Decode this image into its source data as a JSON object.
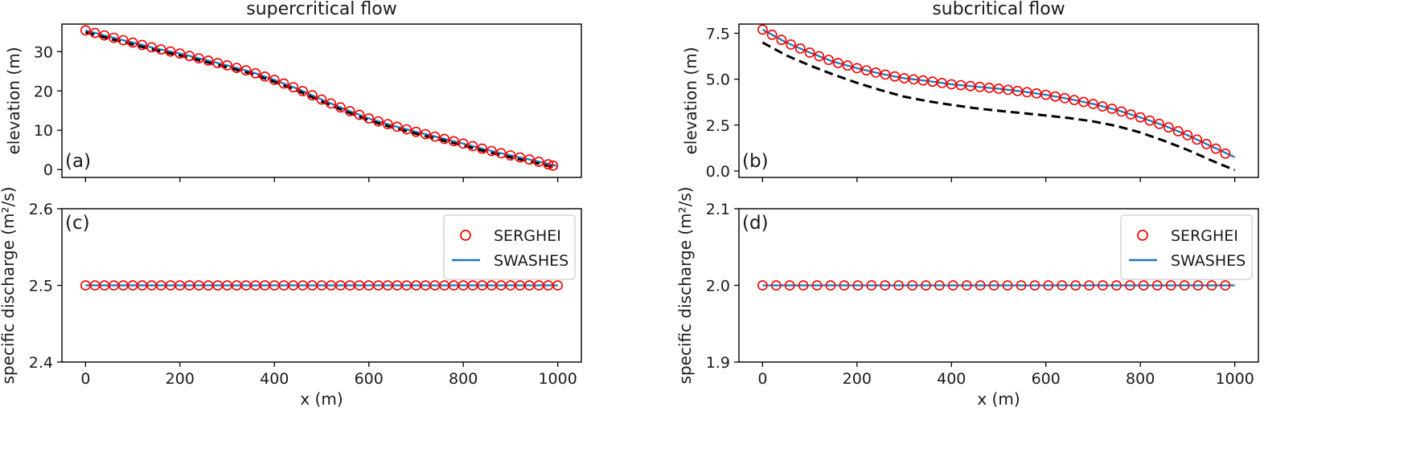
{
  "figure": {
    "xlabel": "x (m)",
    "ylabel_top": "elevation (m)",
    "ylabel_bottom": "specific discharge (m²/s)"
  },
  "chart_data": [
    {
      "id": "a",
      "panel_label": "(a)",
      "title": "supercritical flow",
      "type": "line",
      "xlim": [
        -50,
        1050
      ],
      "ylim": [
        -2,
        37
      ],
      "xticks": [
        0,
        200,
        400,
        600,
        800,
        1000
      ],
      "xtick_labels": [
        "",
        "",
        "",
        "",
        "",
        ""
      ],
      "yticks": [
        0,
        10,
        20,
        30
      ],
      "ytick_labels": [
        "0",
        "10",
        "20",
        "30"
      ],
      "legend": false,
      "series": [
        {
          "role": "serghei",
          "style": "circle",
          "color": "#ff0000",
          "x": [
            0,
            50,
            100,
            150,
            200,
            250,
            300,
            350,
            400,
            450,
            500,
            550,
            600,
            650,
            700,
            750,
            800,
            850,
            900,
            950,
            990
          ],
          "values": [
            35.4,
            33.8,
            32.3,
            30.8,
            29.5,
            28.0,
            26.5,
            24.9,
            22.8,
            20.5,
            17.8,
            15.3,
            13.0,
            11.2,
            9.6,
            8.1,
            6.6,
            5.0,
            3.6,
            2.3,
            1.0
          ]
        },
        {
          "role": "swashes",
          "style": "solid",
          "color": "#1f77b4",
          "x": [
            0,
            50,
            100,
            150,
            200,
            250,
            300,
            350,
            400,
            450,
            500,
            550,
            600,
            650,
            700,
            750,
            800,
            850,
            900,
            950,
            1000
          ],
          "values": [
            35.4,
            33.8,
            32.3,
            30.8,
            29.5,
            28.0,
            26.5,
            24.9,
            22.8,
            20.5,
            17.8,
            15.3,
            13.0,
            11.2,
            9.6,
            8.1,
            6.6,
            5.0,
            3.6,
            2.3,
            0.9
          ]
        },
        {
          "role": "bed",
          "style": "dashed",
          "color": "#000000",
          "x": [
            0,
            50,
            100,
            150,
            200,
            250,
            300,
            350,
            400,
            450,
            500,
            550,
            600,
            650,
            700,
            750,
            800,
            850,
            900,
            950,
            1000
          ],
          "values": [
            34.9,
            33.3,
            31.8,
            30.3,
            29.0,
            27.5,
            26.0,
            24.4,
            22.3,
            20.0,
            17.3,
            14.8,
            12.5,
            10.7,
            9.1,
            7.6,
            6.1,
            4.5,
            3.1,
            1.8,
            0.3
          ]
        }
      ]
    },
    {
      "id": "b",
      "panel_label": "(b)",
      "title": "subcritical flow",
      "type": "line",
      "xlim": [
        -50,
        1050
      ],
      "ylim": [
        -0.35,
        8.0
      ],
      "xticks": [
        0,
        200,
        400,
        600,
        800,
        1000
      ],
      "xtick_labels": [
        "",
        "",
        "",
        "",
        "",
        ""
      ],
      "yticks": [
        0.0,
        2.5,
        5.0,
        7.5
      ],
      "ytick_labels": [
        "0.0",
        "2.5",
        "5.0",
        "7.5"
      ],
      "legend": false,
      "series": [
        {
          "role": "serghei",
          "style": "circle",
          "color": "#ff0000",
          "x": [
            0,
            50,
            100,
            150,
            200,
            250,
            300,
            350,
            400,
            450,
            500,
            550,
            600,
            650,
            700,
            750,
            800,
            850,
            900,
            950,
            980
          ],
          "values": [
            7.7,
            7.0,
            6.45,
            5.95,
            5.6,
            5.3,
            5.05,
            4.9,
            4.72,
            4.6,
            4.48,
            4.33,
            4.15,
            3.92,
            3.65,
            3.32,
            2.92,
            2.48,
            1.95,
            1.35,
            0.95
          ]
        },
        {
          "role": "swashes",
          "style": "solid",
          "color": "#1f77b4",
          "x": [
            0,
            50,
            100,
            150,
            200,
            250,
            300,
            350,
            400,
            450,
            500,
            550,
            600,
            650,
            700,
            750,
            800,
            850,
            900,
            950,
            1000
          ],
          "values": [
            7.7,
            7.0,
            6.45,
            5.95,
            5.6,
            5.3,
            5.05,
            4.9,
            4.72,
            4.6,
            4.48,
            4.33,
            4.15,
            3.92,
            3.65,
            3.32,
            2.92,
            2.48,
            1.95,
            1.35,
            0.75
          ]
        },
        {
          "role": "bed",
          "style": "dashed",
          "color": "#000000",
          "x": [
            0,
            50,
            100,
            150,
            200,
            250,
            300,
            350,
            400,
            450,
            500,
            550,
            600,
            650,
            700,
            750,
            800,
            850,
            900,
            950,
            1000
          ],
          "values": [
            7.0,
            6.3,
            5.75,
            5.25,
            4.8,
            4.4,
            4.05,
            3.8,
            3.6,
            3.42,
            3.28,
            3.15,
            3.02,
            2.88,
            2.7,
            2.45,
            2.1,
            1.65,
            1.15,
            0.58,
            0.05
          ]
        }
      ]
    },
    {
      "id": "c",
      "panel_label": "(c)",
      "title": "",
      "type": "line",
      "xlabel": "x (m)",
      "xlim": [
        -50,
        1050
      ],
      "ylim": [
        2.4,
        2.6
      ],
      "xticks": [
        0,
        200,
        400,
        600,
        800,
        1000
      ],
      "xtick_labels": [
        "0",
        "200",
        "400",
        "600",
        "800",
        "1000"
      ],
      "yticks": [
        2.4,
        2.5,
        2.6
      ],
      "ytick_labels": [
        "2.4",
        "2.5",
        "2.6"
      ],
      "legend": "top-right",
      "marker_count": 51,
      "series": [
        {
          "role": "serghei",
          "name": "SERGHEI",
          "style": "circle",
          "color": "#ff0000",
          "x": [
            0,
            1000
          ],
          "values": [
            2.5,
            2.5
          ]
        },
        {
          "role": "swashes",
          "name": "SWASHES",
          "style": "solid",
          "color": "#1f77b4",
          "x": [
            0,
            1000
          ],
          "values": [
            2.5,
            2.5
          ]
        }
      ]
    },
    {
      "id": "d",
      "panel_label": "(d)",
      "title": "",
      "type": "line",
      "xlabel": "x (m)",
      "xlim": [
        -50,
        1050
      ],
      "ylim": [
        1.9,
        2.1
      ],
      "xticks": [
        0,
        200,
        400,
        600,
        800,
        1000
      ],
      "xtick_labels": [
        "0",
        "200",
        "400",
        "600",
        "800",
        "1000"
      ],
      "yticks": [
        1.9,
        2.0,
        2.1
      ],
      "ytick_labels": [
        "1.9",
        "2.0",
        "2.1"
      ],
      "legend": "top-right",
      "marker_count": 35,
      "series": [
        {
          "role": "serghei",
          "name": "SERGHEI",
          "style": "circle",
          "color": "#ff0000",
          "x": [
            0,
            980
          ],
          "values": [
            2.0,
            2.0
          ]
        },
        {
          "role": "swashes",
          "name": "SWASHES",
          "style": "solid",
          "color": "#1f77b4",
          "x": [
            0,
            1000
          ],
          "values": [
            2.0,
            2.0
          ]
        }
      ]
    }
  ]
}
